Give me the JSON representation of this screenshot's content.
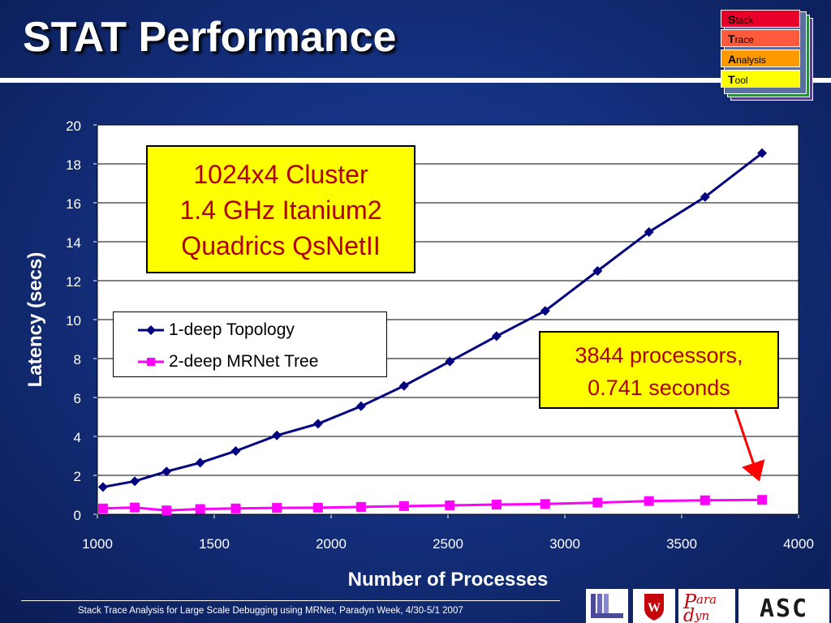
{
  "slide": {
    "title": "STAT Performance",
    "footer": "Stack Trace Analysis for Large Scale Debugging using MRNet, Paradyn Week, 4/30-5/1 2007"
  },
  "logo": {
    "items": [
      {
        "initial": "S",
        "rest": "tack",
        "color": "#e8002a"
      },
      {
        "initial": "T",
        "rest": "race",
        "color": "#ff5a3c"
      },
      {
        "initial": "A",
        "rest": "nalysis",
        "color": "#ff9900"
      },
      {
        "initial": "T",
        "rest": "ool",
        "color": "#ffff00"
      }
    ]
  },
  "callouts": {
    "cluster": [
      "1024x4 Cluster",
      "1.4 GHz Itanium2",
      "Quadrics QsNetII"
    ],
    "processors": [
      "3844 processors,",
      "0.741 seconds"
    ]
  },
  "footer_logos": {
    "paradyn": {
      "top": "ara",
      "bottom": "yn"
    },
    "asc": "ASC"
  },
  "colors": {
    "series1": "#000080",
    "series2": "#ff00ff",
    "callout_fill": "#ffff00",
    "callout_text": "#b00000",
    "arrow": "#ff0000"
  },
  "chart_data": {
    "type": "line",
    "xlabel": "Number of Processes",
    "ylabel": "Latency (secs)",
    "xlim": [
      1000,
      4000
    ],
    "ylim": [
      0,
      20
    ],
    "xticks": [
      "1000",
      "1500",
      "2000",
      "2500",
      "3000",
      "3500",
      "4000"
    ],
    "yticks": [
      "0",
      "2",
      "4",
      "6",
      "8",
      "10",
      "12",
      "14",
      "16",
      "18",
      "20"
    ],
    "grid": "horizontal",
    "legend_position": "left-middle",
    "series": [
      {
        "name": "1-deep Topology",
        "marker": "diamond",
        "color": "#000080",
        "x": [
          1024,
          1160,
          1296,
          1440,
          1592,
          1768,
          1944,
          2128,
          2312,
          2508,
          2708,
          2916,
          3140,
          3360,
          3600,
          3844
        ],
        "y": [
          1.4,
          1.7,
          2.2,
          2.65,
          3.25,
          4.05,
          4.65,
          5.55,
          6.6,
          7.85,
          9.15,
          10.45,
          12.5,
          14.5,
          16.3,
          18.55
        ]
      },
      {
        "name": "2-deep MRNet Tree",
        "marker": "square",
        "color": "#ff00ff",
        "x": [
          1024,
          1160,
          1296,
          1440,
          1592,
          1768,
          1944,
          2128,
          2312,
          2508,
          2708,
          2916,
          3140,
          3360,
          3600,
          3844
        ],
        "y": [
          0.3,
          0.35,
          0.2,
          0.27,
          0.3,
          0.33,
          0.34,
          0.38,
          0.42,
          0.46,
          0.5,
          0.53,
          0.6,
          0.68,
          0.72,
          0.741
        ]
      }
    ]
  }
}
